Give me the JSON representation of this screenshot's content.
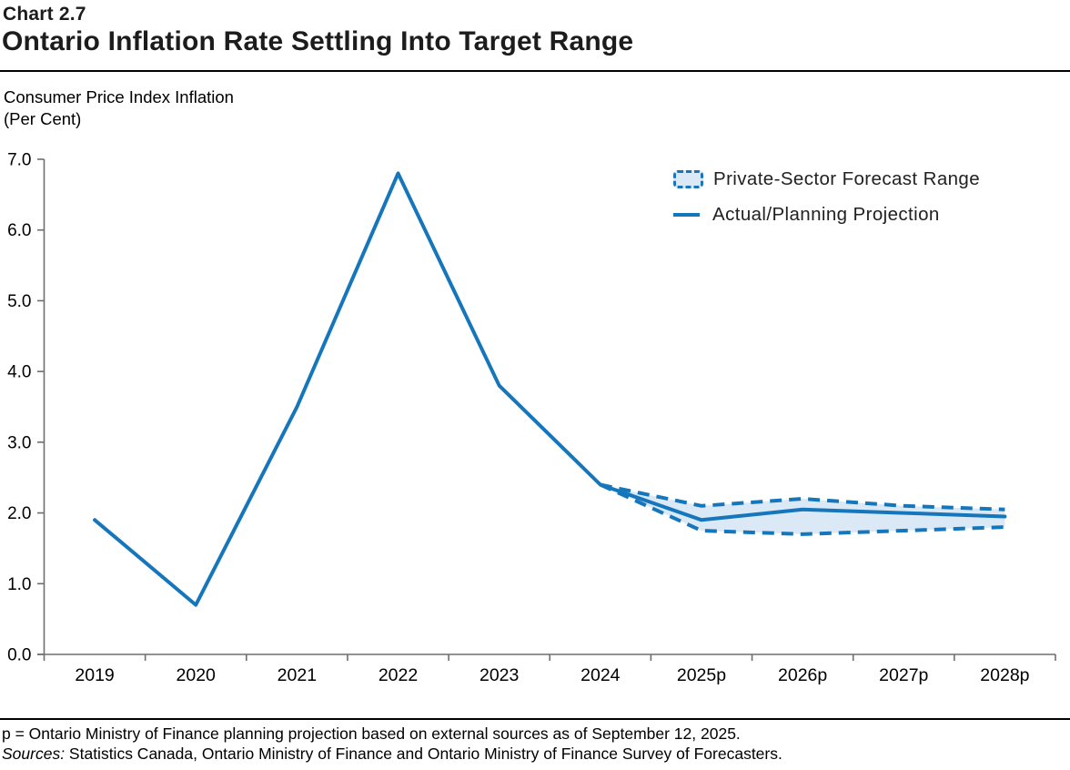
{
  "header": {
    "chart_label": "Chart 2.7",
    "title": "Ontario Inflation Rate Settling Into Target Range"
  },
  "subtitle": {
    "line1": "Consumer Price Index Inflation",
    "line2": "(Per Cent)"
  },
  "legend": {
    "items": [
      {
        "label": "Private-Sector Forecast Range",
        "swatch": "dashed-band"
      },
      {
        "label": "Actual/Planning Projection",
        "swatch": "solid-line"
      }
    ]
  },
  "footnotes": {
    "note": "p = Ontario Ministry of Finance planning projection based on external sources as of September 12, 2025.",
    "sources_label": "Sources:",
    "sources_text": " Statistics Canada, Ontario Ministry of Finance and Ontario Ministry of Finance Survey of Forecasters."
  },
  "colors": {
    "line": "#1676bc",
    "band_fill": "#dbe9f6",
    "axis": "#6e6e6e",
    "text": "#000000"
  },
  "chart_data": {
    "type": "line",
    "title": "Ontario Inflation Rate Settling Into Target Range",
    "xlabel": "",
    "ylabel": "Consumer Price Index Inflation (Per Cent)",
    "categories": [
      "2019",
      "2020",
      "2021",
      "2022",
      "2023",
      "2024",
      "2025p",
      "2026p",
      "2027p",
      "2028p"
    ],
    "series": [
      {
        "name": "Actual/Planning Projection",
        "style": "solid",
        "values": [
          1.9,
          0.7,
          3.5,
          6.8,
          3.8,
          2.4,
          1.9,
          2.05,
          2.0,
          1.95
        ]
      },
      {
        "name": "Private-Sector Forecast Range (upper)",
        "style": "dashed",
        "values": [
          null,
          null,
          null,
          null,
          null,
          2.4,
          2.1,
          2.2,
          2.1,
          2.05
        ]
      },
      {
        "name": "Private-Sector Forecast Range (lower)",
        "style": "dashed",
        "values": [
          null,
          null,
          null,
          null,
          null,
          2.4,
          1.75,
          1.7,
          1.75,
          1.8
        ]
      }
    ],
    "ylim": [
      0.0,
      7.0
    ],
    "ytick_step": 1.0,
    "yticks": [
      "0.0",
      "1.0",
      "2.0",
      "3.0",
      "4.0",
      "5.0",
      "6.0",
      "7.0"
    ],
    "grid": false,
    "legend_position": "top-right"
  }
}
